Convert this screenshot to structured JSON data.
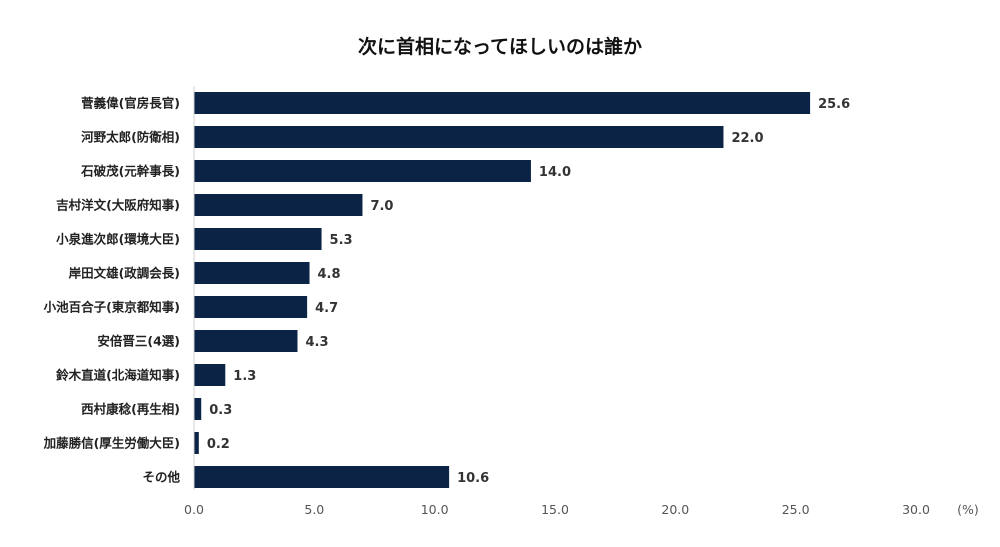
{
  "chart_data": {
    "type": "bar",
    "orientation": "horizontal",
    "title": "次に首相になってほしいのは誰か",
    "categories": [
      "菅義偉(官房長官)",
      "河野太郎(防衛相)",
      "石破茂(元幹事長)",
      "吉村洋文(大阪府知事)",
      "小泉進次郎(環境大臣)",
      "岸田文雄(政調会長)",
      "小池百合子(東京都知事)",
      "安倍晋三(4選)",
      "鈴木直道(北海道知事)",
      "西村康稔(再生相)",
      "加藤勝信(厚生労働大臣)",
      "その他"
    ],
    "values": [
      25.6,
      22.0,
      14.0,
      7.0,
      5.3,
      4.8,
      4.7,
      4.3,
      1.3,
      0.3,
      0.2,
      10.6
    ],
    "value_labels": [
      "25.6",
      "22.0",
      "14.0",
      "7.0",
      "5.3",
      "4.8",
      "4.7",
      "4.3",
      "1.3",
      "0.3",
      "0.2",
      "10.6"
    ],
    "xlim": [
      0,
      30
    ],
    "x_ticks": [
      "0.0",
      "5.0",
      "10.0",
      "15.0",
      "20.0",
      "25.0",
      "30.0"
    ],
    "x_unit": "(%)",
    "grid": false,
    "bar_color": "#0b2446"
  }
}
